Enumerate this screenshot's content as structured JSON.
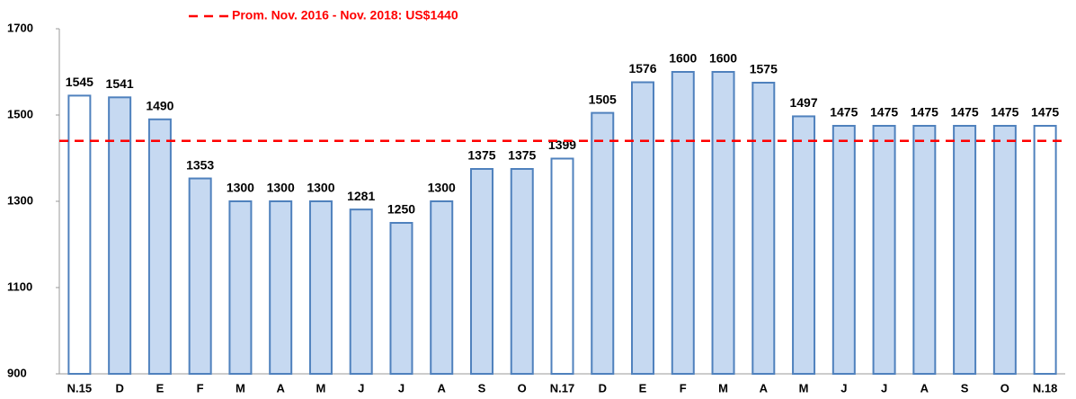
{
  "chart_data": {
    "type": "bar",
    "categories": [
      "N.15",
      "D",
      "E",
      "F",
      "M",
      "A",
      "M",
      "J",
      "J",
      "A",
      "S",
      "O",
      "N.17",
      "D",
      "E",
      "F",
      "M",
      "A",
      "M",
      "J",
      "J",
      "A",
      "S",
      "O",
      "N.18"
    ],
    "values": [
      1545,
      1541,
      1490,
      1353,
      1300,
      1300,
      1300,
      1281,
      1250,
      1300,
      1375,
      1375,
      1399,
      1505,
      1576,
      1600,
      1600,
      1575,
      1497,
      1475,
      1475,
      1475,
      1475,
      1475,
      1475
    ],
    "colors": [
      "#ffffff",
      "#c6d9f1",
      "#c6d9f1",
      "#c6d9f1",
      "#c6d9f1",
      "#c6d9f1",
      "#c6d9f1",
      "#c6d9f1",
      "#c6d9f1",
      "#c6d9f1",
      "#c6d9f1",
      "#c6d9f1",
      "#ffffff",
      "#c6d9f1",
      "#c6d9f1",
      "#c6d9f1",
      "#c6d9f1",
      "#c6d9f1",
      "#c6d9f1",
      "#c6d9f1",
      "#c6d9f1",
      "#c6d9f1",
      "#c6d9f1",
      "#c6d9f1",
      "#ffffff"
    ],
    "edge_color": "#4f81bd",
    "ylim": [
      900,
      1700
    ],
    "yticks": [
      900,
      1100,
      1300,
      1500,
      1700
    ],
    "grid": false,
    "reference_line": {
      "value": 1440,
      "label": "Prom. Nov. 2016 - Nov. 2018: US$1440",
      "color": "#ff0000"
    }
  }
}
